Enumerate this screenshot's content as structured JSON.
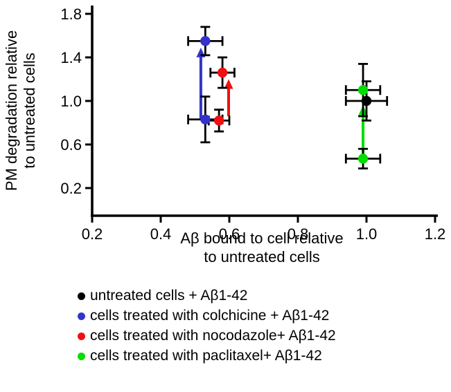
{
  "chart_data": {
    "type": "scatter",
    "title": "",
    "xlabel_line1": "Aβ bound to cell relative",
    "xlabel_line2": "to untreated cells",
    "ylabel_line1": "PM degradation relative",
    "ylabel_line2": "to untreated cells",
    "xticks": [
      "0.2",
      "0.4",
      "0.6",
      "0.8",
      "1.0",
      "1.2"
    ],
    "yticks": [
      "0.2",
      "0.6",
      "1.0",
      "1.4",
      "1.8"
    ],
    "xlim": [
      0.2,
      1.2
    ],
    "ylim": [
      0.2,
      1.8
    ],
    "grid": false,
    "legend_position": "bottom-left",
    "series": [
      {
        "name": "untreated cells + Aβ1-42",
        "color": "#000000",
        "points": [
          {
            "x": 1.0,
            "y": 1.0,
            "ex": 0.06,
            "ey": 0.18
          }
        ]
      },
      {
        "name": "cells treated with colchicine + Aβ1-42",
        "color": "#3333cc",
        "points": [
          {
            "x": 0.53,
            "y": 0.83,
            "ex": 0.05,
            "ey": 0.21
          },
          {
            "x": 0.53,
            "y": 1.55,
            "ex": 0.05,
            "ey": 0.13
          }
        ]
      },
      {
        "name": "cells treated with nocodazole+ Aβ1-42",
        "color": "#ee1111",
        "points": [
          {
            "x": 0.57,
            "y": 0.82,
            "ex": 0.03,
            "ey": 0.1
          },
          {
            "x": 0.58,
            "y": 1.26,
            "ex": 0.035,
            "ey": 0.14
          }
        ]
      },
      {
        "name": "cells treated with paclitaxel+ Aβ1-42",
        "color": "#00dd00",
        "points": [
          {
            "x": 0.99,
            "y": 0.47,
            "ex": 0.05,
            "ey": 0.09
          },
          {
            "x": 0.99,
            "y": 1.1,
            "ex": 0.05,
            "ey": 0.24
          }
        ]
      }
    ],
    "arrows": [
      {
        "color": "#3333cc",
        "x": 0.517,
        "y_from": 0.83,
        "y_to": 1.49
      },
      {
        "color": "#ee1111",
        "x": 0.598,
        "y_from": 0.86,
        "y_to": 1.2
      },
      {
        "color": "#00dd00",
        "x": 0.99,
        "y_from": 0.5,
        "y_to": 0.96
      }
    ],
    "legend": [
      {
        "label": "untreated cells + Aβ1-42",
        "color": "#000000"
      },
      {
        "label": "cells treated with colchicine + Aβ1-42",
        "color": "#3333cc"
      },
      {
        "label": "cells treated with nocodazole+ Aβ1-42",
        "color": "#ee1111"
      },
      {
        "label": "cells treated with paclitaxel+ Aβ1-42",
        "color": "#00dd00"
      }
    ]
  }
}
